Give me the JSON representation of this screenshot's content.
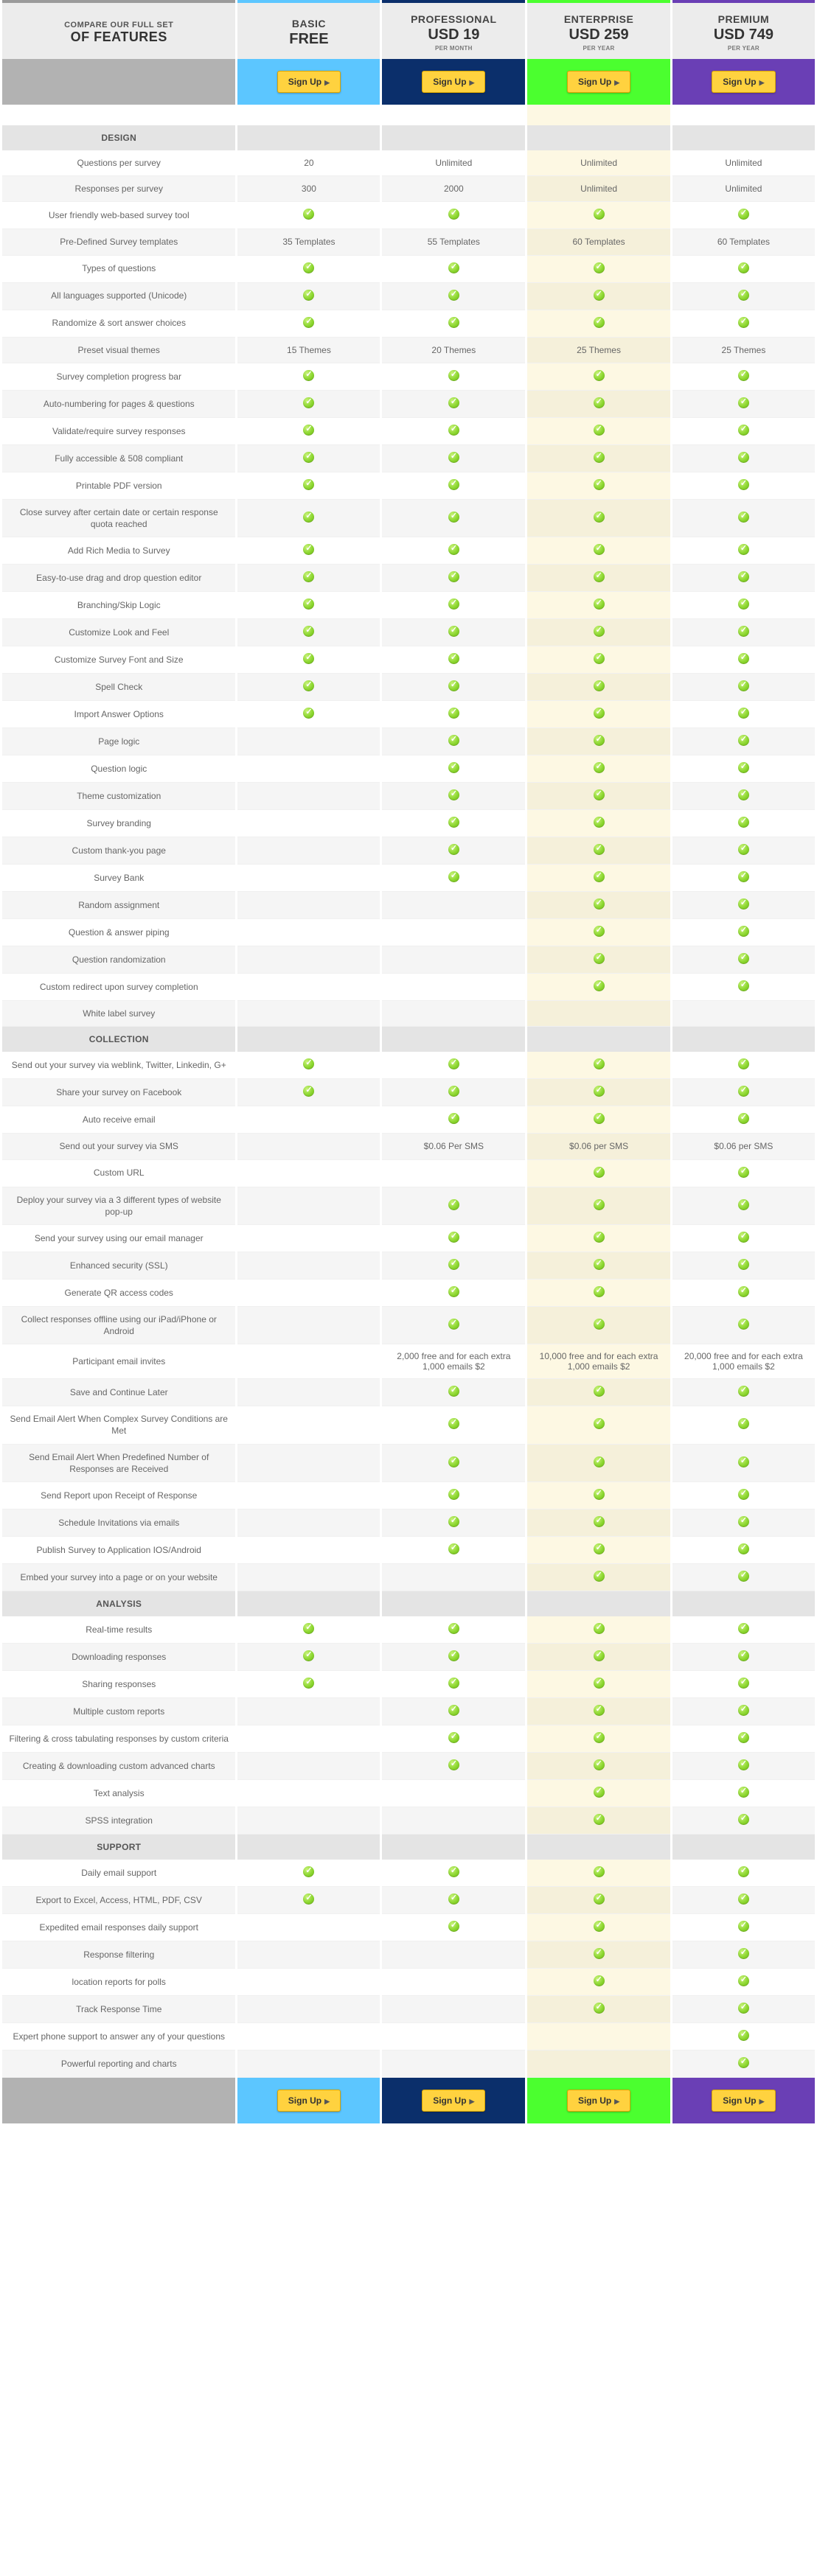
{
  "header": {
    "compare_small": "COMPARE OUR FULL SET",
    "compare_big": "OF FEATURES",
    "signup_label": "Sign Up"
  },
  "plans": [
    {
      "key": "basic",
      "name": "BASIC",
      "price": "FREE",
      "period": "",
      "accent": "#5cc6ff",
      "signup_bg": "#5cc6ff"
    },
    {
      "key": "professional",
      "name": "PROFESSIONAL",
      "price": "USD 19",
      "period": "PER MONTH",
      "accent": "#0b2f6b",
      "signup_bg": "#0b2f6b"
    },
    {
      "key": "enterprise",
      "name": "ENTERPRISE",
      "price": "USD 259",
      "period": "PER YEAR",
      "accent": "#4bff2f",
      "signup_bg": "#4bff2f",
      "highlight": true
    },
    {
      "key": "premium",
      "name": "PREMIUM",
      "price": "USD 749",
      "period": "PER YEAR",
      "accent": "#6a3fb5",
      "signup_bg": "#6a3fb5"
    }
  ],
  "sections": [
    {
      "title": "DESIGN",
      "rows": [
        {
          "label": "Questions per survey",
          "vals": [
            "20",
            "Unlimited",
            "Unlimited",
            "Unlimited"
          ]
        },
        {
          "label": "Responses per survey",
          "vals": [
            "300",
            "2000",
            "Unlimited",
            "Unlimited"
          ]
        },
        {
          "label": "User friendly web-based survey tool",
          "vals": [
            "✓",
            "✓",
            "✓",
            "✓"
          ]
        },
        {
          "label": "Pre-Defined Survey templates",
          "vals": [
            "35 Templates",
            "55 Templates",
            "60 Templates",
            "60 Templates"
          ]
        },
        {
          "label": "Types of questions",
          "vals": [
            "✓",
            "✓",
            "✓",
            "✓"
          ]
        },
        {
          "label": "All languages supported (Unicode)",
          "vals": [
            "✓",
            "✓",
            "✓",
            "✓"
          ]
        },
        {
          "label": "Randomize & sort answer choices",
          "vals": [
            "✓",
            "✓",
            "✓",
            "✓"
          ]
        },
        {
          "label": "Preset visual themes",
          "vals": [
            "15 Themes",
            "20 Themes",
            "25 Themes",
            "25 Themes"
          ]
        },
        {
          "label": "Survey completion progress bar",
          "vals": [
            "✓",
            "✓",
            "✓",
            "✓"
          ]
        },
        {
          "label": "Auto-numbering for pages & questions",
          "vals": [
            "✓",
            "✓",
            "✓",
            "✓"
          ]
        },
        {
          "label": "Validate/require survey responses",
          "vals": [
            "✓",
            "✓",
            "✓",
            "✓"
          ]
        },
        {
          "label": "Fully accessible & 508 compliant",
          "vals": [
            "✓",
            "✓",
            "✓",
            "✓"
          ]
        },
        {
          "label": "Printable PDF version",
          "vals": [
            "✓",
            "✓",
            "✓",
            "✓"
          ]
        },
        {
          "label": "Close survey after certain date or certain response quota reached",
          "vals": [
            "✓",
            "✓",
            "✓",
            "✓"
          ]
        },
        {
          "label": "Add Rich Media to Survey",
          "vals": [
            "✓",
            "✓",
            "✓",
            "✓"
          ]
        },
        {
          "label": "Easy-to-use drag and drop question editor",
          "vals": [
            "✓",
            "✓",
            "✓",
            "✓"
          ]
        },
        {
          "label": "Branching/Skip Logic",
          "vals": [
            "✓",
            "✓",
            "✓",
            "✓"
          ]
        },
        {
          "label": "Customize Look and Feel",
          "vals": [
            "✓",
            "✓",
            "✓",
            "✓"
          ]
        },
        {
          "label": "Customize Survey Font and Size",
          "vals": [
            "✓",
            "✓",
            "✓",
            "✓"
          ]
        },
        {
          "label": "Spell Check",
          "vals": [
            "✓",
            "✓",
            "✓",
            "✓"
          ]
        },
        {
          "label": "Import Answer Options",
          "vals": [
            "✓",
            "✓",
            "✓",
            "✓"
          ]
        },
        {
          "label": "Page logic",
          "vals": [
            "",
            "✓",
            "✓",
            "✓"
          ]
        },
        {
          "label": "Question logic",
          "vals": [
            "",
            "✓",
            "✓",
            "✓"
          ]
        },
        {
          "label": "Theme customization",
          "vals": [
            "",
            "✓",
            "✓",
            "✓"
          ]
        },
        {
          "label": "Survey branding",
          "vals": [
            "",
            "✓",
            "✓",
            "✓"
          ]
        },
        {
          "label": "Custom thank-you page",
          "vals": [
            "",
            "✓",
            "✓",
            "✓"
          ]
        },
        {
          "label": "Survey Bank",
          "vals": [
            "",
            "✓",
            "✓",
            "✓"
          ]
        },
        {
          "label": "Random assignment",
          "vals": [
            "",
            "",
            "✓",
            "✓"
          ]
        },
        {
          "label": "Question & answer piping",
          "vals": [
            "",
            "",
            "✓",
            "✓"
          ]
        },
        {
          "label": "Question randomization",
          "vals": [
            "",
            "",
            "✓",
            "✓"
          ]
        },
        {
          "label": "Custom redirect upon survey completion",
          "vals": [
            "",
            "",
            "✓",
            "✓"
          ]
        },
        {
          "label": "White label survey",
          "vals": [
            "",
            "",
            "",
            ""
          ]
        }
      ]
    },
    {
      "title": "COLLECTION",
      "rows": [
        {
          "label": "Send out your survey via weblink, Twitter, Linkedin, G+",
          "vals": [
            "✓",
            "✓",
            "✓",
            "✓"
          ]
        },
        {
          "label": "Share your survey on Facebook",
          "vals": [
            "✓",
            "✓",
            "✓",
            "✓"
          ]
        },
        {
          "label": "Auto receive email",
          "vals": [
            "",
            "✓",
            "✓",
            "✓"
          ]
        },
        {
          "label": "Send out your survey via SMS",
          "vals": [
            "",
            "$0.06 Per SMS",
            "$0.06 per SMS",
            "$0.06 per SMS"
          ]
        },
        {
          "label": "Custom URL",
          "vals": [
            "",
            "",
            "✓",
            "✓"
          ]
        },
        {
          "label": "Deploy your survey via a 3 different types of website pop-up",
          "vals": [
            "",
            "✓",
            "✓",
            "✓"
          ]
        },
        {
          "label": "Send your survey using our email manager",
          "vals": [
            "",
            "✓",
            "✓",
            "✓"
          ]
        },
        {
          "label": "Enhanced security (SSL)",
          "vals": [
            "",
            "✓",
            "✓",
            "✓"
          ]
        },
        {
          "label": "Generate QR access codes",
          "vals": [
            "",
            "✓",
            "✓",
            "✓"
          ]
        },
        {
          "label": "Collect responses offline using our iPad/iPhone or Android",
          "vals": [
            "",
            "✓",
            "✓",
            "✓"
          ]
        },
        {
          "label": "Participant email invites",
          "vals": [
            "",
            "2,000 free and for each extra 1,000 emails $2",
            "10,000 free and for each extra 1,000 emails $2",
            "20,000 free and for each extra 1,000 emails $2"
          ]
        },
        {
          "label": "Save and Continue Later",
          "vals": [
            "",
            "✓",
            "✓",
            "✓"
          ]
        },
        {
          "label": "Send Email Alert When Complex Survey Conditions are Met",
          "vals": [
            "",
            "✓",
            "✓",
            "✓"
          ]
        },
        {
          "label": "Send Email Alert When Predefined Number of Responses are Received",
          "vals": [
            "",
            "✓",
            "✓",
            "✓"
          ]
        },
        {
          "label": "Send Report upon Receipt of Response",
          "vals": [
            "",
            "✓",
            "✓",
            "✓"
          ]
        },
        {
          "label": "Schedule Invitations via emails",
          "vals": [
            "",
            "✓",
            "✓",
            "✓"
          ]
        },
        {
          "label": "Publish Survey to Application IOS/Android",
          "vals": [
            "",
            "✓",
            "✓",
            "✓"
          ]
        },
        {
          "label": "Embed your survey into a page or on your website",
          "vals": [
            "",
            "",
            "✓",
            "✓"
          ]
        }
      ]
    },
    {
      "title": "ANALYSIS",
      "rows": [
        {
          "label": "Real-time results",
          "vals": [
            "✓",
            "✓",
            "✓",
            "✓"
          ]
        },
        {
          "label": "Downloading responses",
          "vals": [
            "✓",
            "✓",
            "✓",
            "✓"
          ]
        },
        {
          "label": "Sharing responses",
          "vals": [
            "✓",
            "✓",
            "✓",
            "✓"
          ]
        },
        {
          "label": "Multiple custom reports",
          "vals": [
            "",
            "✓",
            "✓",
            "✓"
          ]
        },
        {
          "label": "Filtering & cross tabulating responses by custom criteria",
          "vals": [
            "",
            "✓",
            "✓",
            "✓"
          ]
        },
        {
          "label": "Creating & downloading custom advanced charts",
          "vals": [
            "",
            "✓",
            "✓",
            "✓"
          ]
        },
        {
          "label": "Text analysis",
          "vals": [
            "",
            "",
            "✓",
            "✓"
          ]
        },
        {
          "label": "SPSS integration",
          "vals": [
            "",
            "",
            "✓",
            "✓"
          ]
        }
      ]
    },
    {
      "title": "SUPPORT",
      "rows": [
        {
          "label": "Daily email support",
          "vals": [
            "✓",
            "✓",
            "✓",
            "✓"
          ]
        },
        {
          "label": "Export to Excel, Access, HTML, PDF, CSV",
          "vals": [
            "✓",
            "✓",
            "✓",
            "✓"
          ]
        },
        {
          "label": "Expedited email responses daily support",
          "vals": [
            "",
            "✓",
            "✓",
            "✓"
          ]
        },
        {
          "label": "Response filtering",
          "vals": [
            "",
            "",
            "✓",
            "✓"
          ]
        },
        {
          "label": "location reports for polls",
          "vals": [
            "",
            "",
            "✓",
            "✓"
          ]
        },
        {
          "label": "Track Response Time",
          "vals": [
            "",
            "",
            "✓",
            "✓"
          ]
        },
        {
          "label": "Expert phone support to answer any of your questions",
          "vals": [
            "",
            "",
            "",
            "✓"
          ]
        },
        {
          "label": "Powerful reporting and charts",
          "vals": [
            "",
            "",
            "",
            "✓"
          ]
        }
      ]
    }
  ]
}
